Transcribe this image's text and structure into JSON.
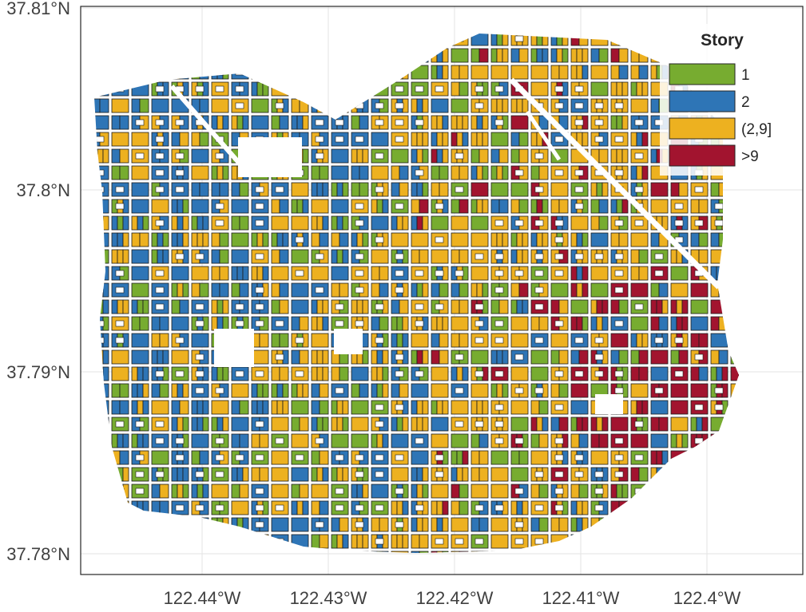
{
  "map": {
    "lat_ticks": [
      "37.81°N",
      "37.8°N",
      "37.79°N",
      "37.78°N"
    ],
    "lon_ticks": [
      "122.44°W",
      "122.43°W",
      "122.42°W",
      "122.41°W",
      "122.4°W"
    ],
    "frame_color": "#262626",
    "grid_color": "#e3e3e3"
  },
  "legend": {
    "title": "Story",
    "items": [
      {
        "label": "1",
        "color": "#77ac30"
      },
      {
        "label": "2",
        "color": "#2e75b6"
      },
      {
        "label": "(2,9]",
        "color": "#edb120"
      },
      {
        "label": ">9",
        "color": "#a2142f"
      }
    ]
  },
  "regions": {
    "tall_cluster_color": "#a2142f",
    "open_space_color": "#ffffff"
  }
}
